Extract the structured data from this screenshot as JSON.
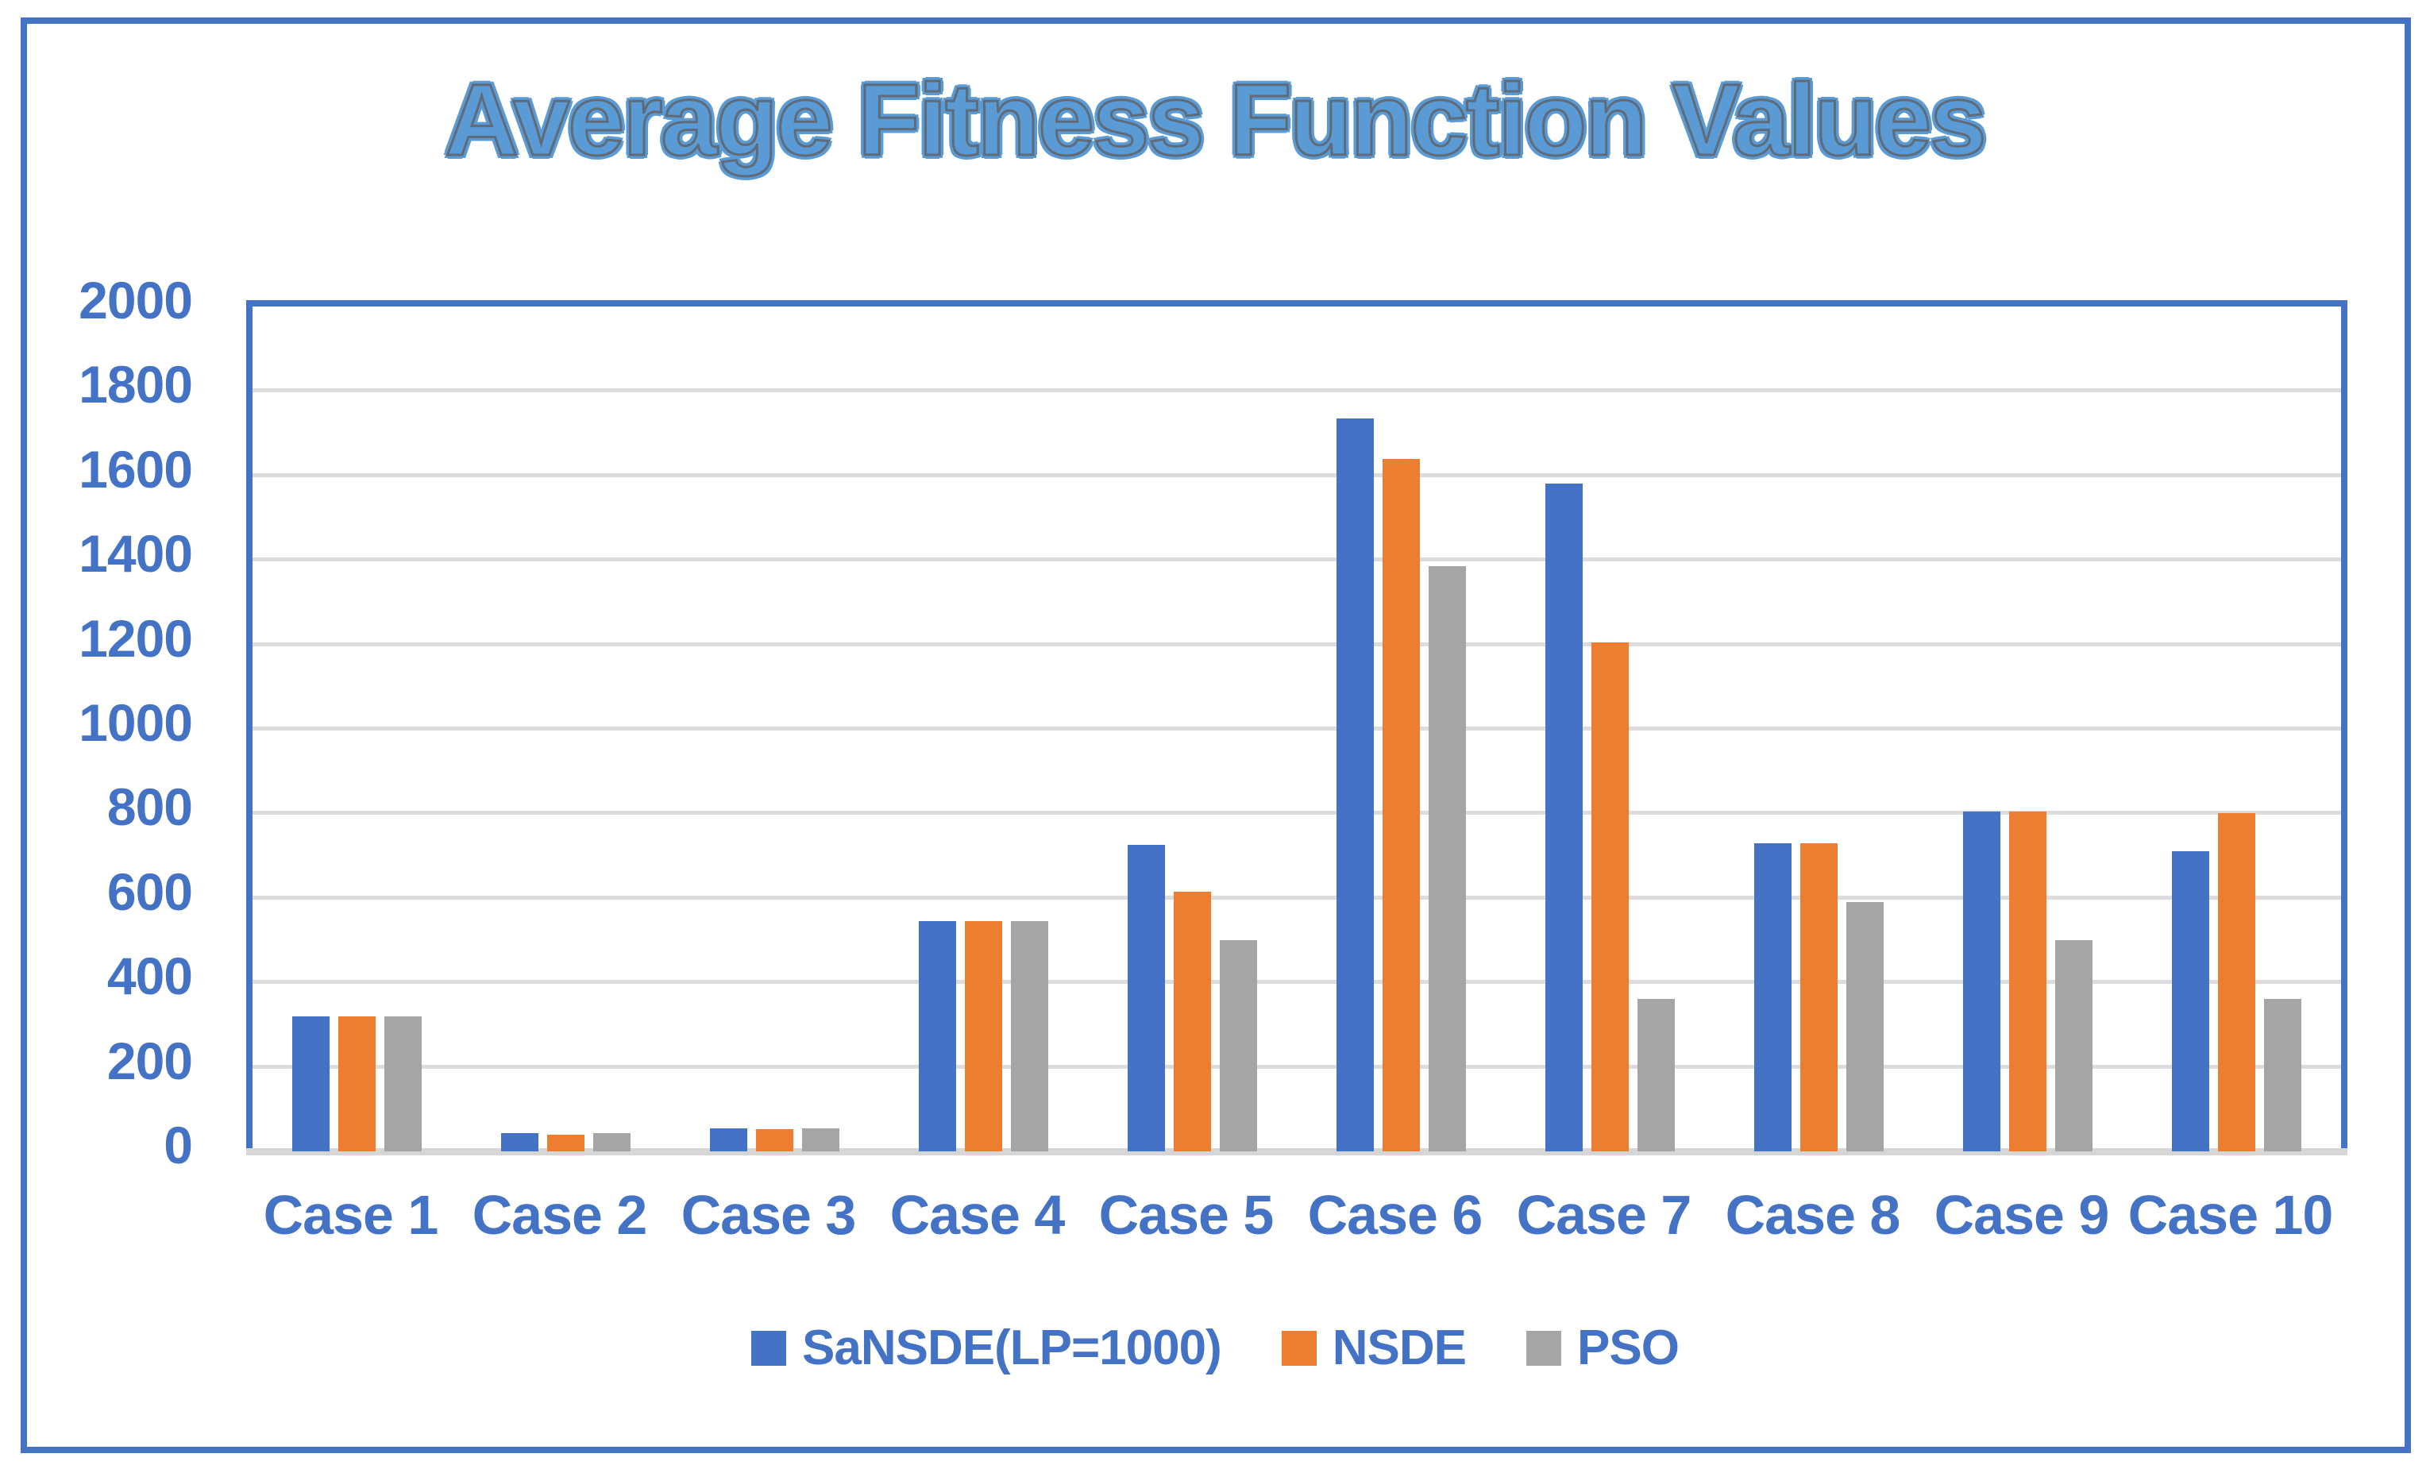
{
  "title": "Average Fitness Function Values",
  "colors": {
    "accent_blue": "#4472C4",
    "title_fill": "#5B9BD5",
    "title_outline": "#5f6b78",
    "gridline": "#DCDCDC",
    "baseline": "#D6D6D6",
    "background": "#ffffff"
  },
  "chart_data": {
    "type": "bar",
    "title": "Average Fitness Function Values",
    "categories": [
      "Case 1",
      "Case 2",
      "Case 3",
      "Case 4",
      "Case 5",
      "Case 6",
      "Case 7",
      "Case 8",
      "Case 9",
      "Case 10"
    ],
    "series": [
      {
        "name": "SaNSDE(LP=1000)",
        "color": "#4472C4",
        "values": [
          320,
          43,
          54,
          545,
          725,
          1735,
          1580,
          730,
          805,
          710
        ]
      },
      {
        "name": "NSDE",
        "color": "#ED7D31",
        "values": [
          320,
          40,
          52,
          545,
          615,
          1640,
          1205,
          730,
          805,
          800
        ]
      },
      {
        "name": "PSO",
        "color": "#A5A5A5",
        "values": [
          320,
          43,
          54,
          545,
          500,
          1385,
          360,
          590,
          500,
          360
        ]
      }
    ],
    "xlabel": "",
    "ylabel": "",
    "ylim": [
      0,
      2000
    ],
    "ytick_step": 200,
    "ytick_labels": [
      "0",
      "200",
      "400",
      "600",
      "800",
      "1000",
      "1200",
      "1400",
      "1600",
      "1800",
      "2000"
    ],
    "grid": true,
    "legend_position": "bottom"
  }
}
